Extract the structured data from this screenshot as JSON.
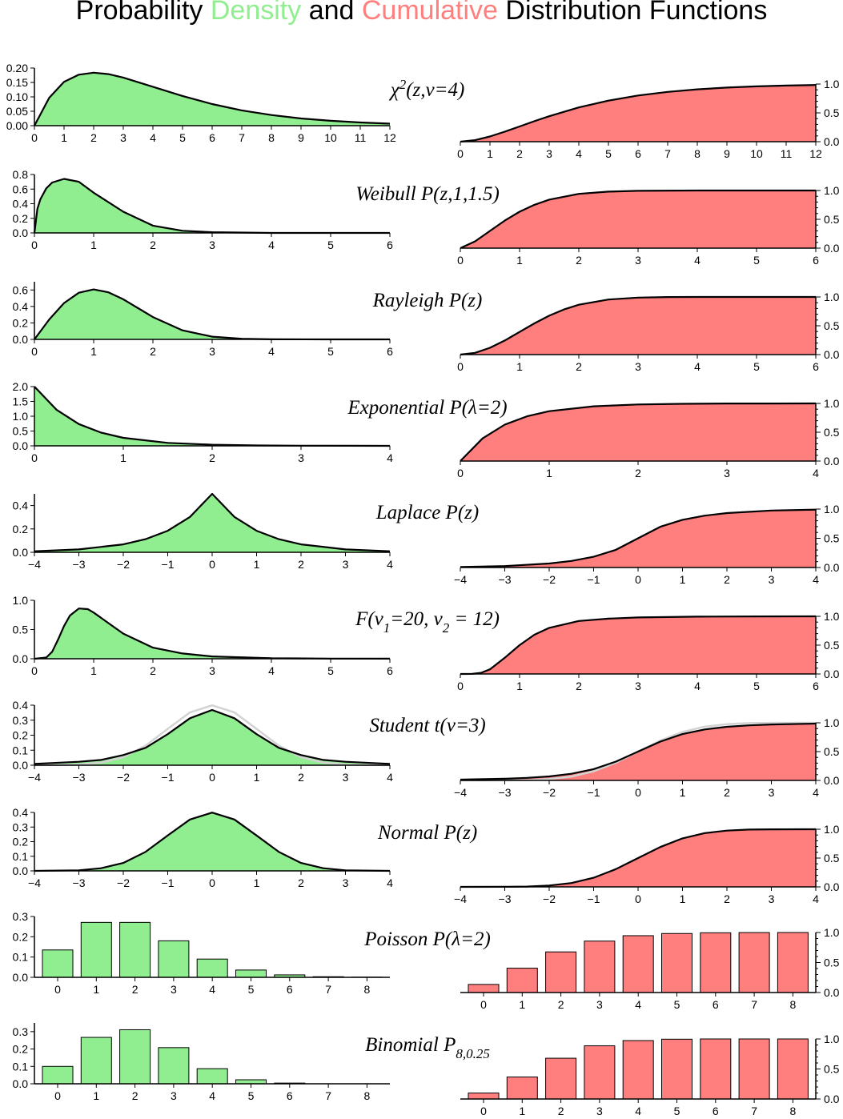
{
  "title": {
    "part1": "Probability ",
    "part2": "Density",
    "part3": " and ",
    "part4": "Cumulative",
    "part5": " Distribution Functions"
  },
  "colors": {
    "density": "#90ee90",
    "cumulative": "#ff7f7f",
    "line": "#000000",
    "reference": "#d3d3d3"
  },
  "chart_data": [
    {
      "type": "area",
      "name": "chi2",
      "label": "χ²(z,ν=4)",
      "pdf": {
        "xlim": [
          0,
          12
        ],
        "ylim": [
          0,
          0.2
        ],
        "xticks": [
          0,
          1,
          2,
          3,
          4,
          5,
          6,
          7,
          8,
          9,
          10,
          11,
          12
        ],
        "yticks": [
          0,
          0.05,
          0.1,
          0.15,
          0.2
        ],
        "ytick_labels": [
          "0.00",
          "0.05",
          "0.10",
          "0.15",
          "0.20"
        ],
        "x": [
          0,
          0.5,
          1,
          1.5,
          2,
          2.5,
          3,
          4,
          5,
          6,
          7,
          8,
          9,
          10,
          11,
          12
        ],
        "y": [
          0,
          0.097,
          0.152,
          0.177,
          0.184,
          0.179,
          0.167,
          0.135,
          0.103,
          0.075,
          0.053,
          0.037,
          0.025,
          0.017,
          0.011,
          0.007
        ]
      },
      "cdf": {
        "xlim": [
          0,
          12
        ],
        "ylim": [
          0,
          1
        ],
        "xticks": [
          0,
          1,
          2,
          3,
          4,
          5,
          6,
          7,
          8,
          9,
          10,
          11,
          12
        ],
        "yticks": [
          0,
          0.5,
          1
        ],
        "ytick_labels": [
          "0.0",
          "0.5",
          "1.0"
        ],
        "x": [
          0,
          0.5,
          1,
          1.5,
          2,
          2.5,
          3,
          4,
          5,
          6,
          7,
          8,
          9,
          10,
          11,
          12
        ],
        "y": [
          0,
          0.026,
          0.09,
          0.173,
          0.264,
          0.355,
          0.442,
          0.594,
          0.713,
          0.801,
          0.864,
          0.908,
          0.939,
          0.96,
          0.973,
          0.983
        ]
      }
    },
    {
      "type": "area",
      "name": "weibull",
      "label": "Weibull P(z,1,1.5)",
      "pdf": {
        "xlim": [
          0,
          6
        ],
        "ylim": [
          0,
          0.8
        ],
        "xticks": [
          0,
          1,
          2,
          3,
          4,
          5,
          6
        ],
        "yticks": [
          0,
          0.2,
          0.4,
          0.6,
          0.8
        ],
        "ytick_labels": [
          "0.0",
          "0.2",
          "0.4",
          "0.6",
          "0.8"
        ],
        "x": [
          0,
          0.05,
          0.1,
          0.2,
          0.3,
          0.5,
          0.75,
          1,
          1.5,
          2,
          2.5,
          3,
          4,
          5,
          6
        ],
        "y": [
          0,
          0.33,
          0.46,
          0.61,
          0.69,
          0.74,
          0.7,
          0.55,
          0.29,
          0.1,
          0.03,
          0.01,
          0,
          0,
          0
        ]
      },
      "cdf": {
        "xlim": [
          0,
          6
        ],
        "ylim": [
          0,
          1
        ],
        "xticks": [
          0,
          1,
          2,
          3,
          4,
          5,
          6
        ],
        "yticks": [
          0,
          0.5,
          1
        ],
        "ytick_labels": [
          "0.0",
          "0.5",
          "1.0"
        ],
        "x": [
          0,
          0.25,
          0.5,
          0.75,
          1,
          1.25,
          1.5,
          2,
          2.5,
          3,
          4,
          5,
          6
        ],
        "y": [
          0,
          0.118,
          0.298,
          0.478,
          0.632,
          0.752,
          0.841,
          0.941,
          0.981,
          0.994,
          1,
          1,
          1
        ]
      }
    },
    {
      "type": "area",
      "name": "rayleigh",
      "label": "Rayleigh P(z)",
      "pdf": {
        "xlim": [
          0,
          6
        ],
        "ylim": [
          0,
          0.7
        ],
        "xticks": [
          0,
          1,
          2,
          3,
          4,
          5,
          6
        ],
        "yticks": [
          0,
          0.2,
          0.4,
          0.6
        ],
        "ytick_labels": [
          "0.0",
          "0.2",
          "0.4",
          "0.6"
        ],
        "x": [
          0,
          0.25,
          0.5,
          0.75,
          1,
          1.25,
          1.5,
          1.75,
          2,
          2.5,
          3,
          3.5,
          4,
          5,
          6
        ],
        "y": [
          0,
          0.242,
          0.441,
          0.567,
          0.607,
          0.572,
          0.487,
          0.379,
          0.271,
          0.11,
          0.033,
          0.008,
          0.001,
          0,
          0
        ]
      },
      "cdf": {
        "xlim": [
          0,
          6
        ],
        "ylim": [
          0,
          1
        ],
        "xticks": [
          0,
          1,
          2,
          3,
          4,
          5,
          6
        ],
        "yticks": [
          0,
          0.5,
          1
        ],
        "ytick_labels": [
          "0.0",
          "0.5",
          "1.0"
        ],
        "x": [
          0,
          0.25,
          0.5,
          0.75,
          1,
          1.25,
          1.5,
          1.75,
          2,
          2.5,
          3,
          3.5,
          4,
          5,
          6
        ],
        "y": [
          0,
          0.031,
          0.118,
          0.245,
          0.393,
          0.542,
          0.675,
          0.784,
          0.865,
          0.956,
          0.989,
          0.998,
          1,
          1,
          1
        ]
      }
    },
    {
      "type": "area",
      "name": "exponential",
      "label": "Exponential P(λ=2)",
      "pdf": {
        "xlim": [
          0,
          4
        ],
        "ylim": [
          0,
          2
        ],
        "xticks": [
          0,
          1,
          2,
          3,
          4
        ],
        "yticks": [
          0,
          0.5,
          1,
          1.5,
          2
        ],
        "ytick_labels": [
          "0.0",
          "0.5",
          "1.0",
          "1.5",
          "2.0"
        ],
        "x": [
          0,
          0.25,
          0.5,
          0.75,
          1,
          1.5,
          2,
          2.5,
          3,
          3.5,
          4
        ],
        "y": [
          2,
          1.213,
          0.736,
          0.446,
          0.271,
          0.1,
          0.037,
          0.013,
          0.005,
          0.002,
          0.001
        ]
      },
      "cdf": {
        "xlim": [
          0,
          4
        ],
        "ylim": [
          0,
          1
        ],
        "xticks": [
          0,
          1,
          2,
          3,
          4
        ],
        "yticks": [
          0,
          0.5,
          1
        ],
        "ytick_labels": [
          "0.0",
          "0.5",
          "1.0"
        ],
        "x": [
          0,
          0.25,
          0.5,
          0.75,
          1,
          1.5,
          2,
          2.5,
          3,
          3.5,
          4
        ],
        "y": [
          0,
          0.393,
          0.632,
          0.777,
          0.865,
          0.95,
          0.982,
          0.993,
          0.998,
          0.999,
          1
        ]
      }
    },
    {
      "type": "area",
      "name": "laplace",
      "label": "Laplace P(z)",
      "pdf": {
        "xlim": [
          -4,
          4
        ],
        "ylim": [
          0,
          0.5
        ],
        "xticks": [
          -4,
          -3,
          -2,
          -1,
          0,
          1,
          2,
          3,
          4
        ],
        "yticks": [
          0,
          0.2,
          0.4
        ],
        "ytick_labels": [
          "0.0",
          "0.2",
          "0.4"
        ],
        "x": [
          -4,
          -3,
          -2,
          -1.5,
          -1,
          -0.5,
          0,
          0.5,
          1,
          1.5,
          2,
          3,
          4
        ],
        "y": [
          0.009,
          0.025,
          0.068,
          0.112,
          0.184,
          0.303,
          0.5,
          0.303,
          0.184,
          0.112,
          0.068,
          0.025,
          0.009
        ]
      },
      "cdf": {
        "xlim": [
          -4,
          4
        ],
        "ylim": [
          0,
          1
        ],
        "xticks": [
          -4,
          -3,
          -2,
          -1,
          0,
          1,
          2,
          3,
          4
        ],
        "yticks": [
          0,
          0.5,
          1
        ],
        "ytick_labels": [
          "0.0",
          "0.5",
          "1.0"
        ],
        "x": [
          -4,
          -3,
          -2,
          -1.5,
          -1,
          -0.5,
          0,
          0.5,
          1,
          1.5,
          2,
          3,
          4
        ],
        "y": [
          0.009,
          0.025,
          0.068,
          0.112,
          0.184,
          0.303,
          0.5,
          0.697,
          0.816,
          0.888,
          0.932,
          0.975,
          0.991
        ]
      }
    },
    {
      "type": "area",
      "name": "f-distribution",
      "label": "F(ν₁=20, ν₂ = 12)",
      "pdf": {
        "xlim": [
          0,
          6
        ],
        "ylim": [
          0,
          1
        ],
        "xticks": [
          0,
          1,
          2,
          3,
          4,
          5,
          6
        ],
        "yticks": [
          0,
          0.5,
          1
        ],
        "ytick_labels": [
          "0.0",
          "0.5",
          "1.0"
        ],
        "x": [
          0,
          0.2,
          0.3,
          0.4,
          0.5,
          0.6,
          0.75,
          0.9,
          1,
          1.25,
          1.5,
          2,
          2.5,
          3,
          4,
          5,
          6
        ],
        "y": [
          0,
          0.02,
          0.12,
          0.33,
          0.56,
          0.74,
          0.86,
          0.85,
          0.79,
          0.61,
          0.43,
          0.19,
          0.09,
          0.04,
          0.01,
          0.003,
          0.001
        ]
      },
      "cdf": {
        "xlim": [
          0,
          6
        ],
        "ylim": [
          0,
          1
        ],
        "xticks": [
          0,
          1,
          2,
          3,
          4,
          5,
          6
        ],
        "yticks": [
          0,
          0.5,
          1
        ],
        "ytick_labels": [
          "0.0",
          "0.5",
          "1.0"
        ],
        "x": [
          0,
          0.2,
          0.35,
          0.5,
          0.75,
          1,
          1.25,
          1.5,
          2,
          2.5,
          3,
          4,
          5,
          6
        ],
        "y": [
          0,
          0.001,
          0.02,
          0.08,
          0.28,
          0.5,
          0.68,
          0.8,
          0.92,
          0.96,
          0.98,
          0.995,
          0.999,
          1
        ]
      }
    },
    {
      "type": "area",
      "name": "student-t",
      "label": "Student t(ν=3)",
      "pdf": {
        "xlim": [
          -4,
          4
        ],
        "ylim": [
          0,
          0.4
        ],
        "xticks": [
          -4,
          -3,
          -2,
          -1,
          0,
          1,
          2,
          3,
          4
        ],
        "yticks": [
          0,
          0.1,
          0.2,
          0.3,
          0.4
        ],
        "ytick_labels": [
          "0.0",
          "0.1",
          "0.2",
          "0.3",
          "0.4"
        ],
        "x": [
          -4,
          -3,
          -2.5,
          -2,
          -1.5,
          -1,
          -0.5,
          0,
          0.5,
          1,
          1.5,
          2,
          2.5,
          3,
          4
        ],
        "y": [
          0.009,
          0.023,
          0.035,
          0.068,
          0.116,
          0.207,
          0.313,
          0.368,
          0.313,
          0.207,
          0.116,
          0.068,
          0.035,
          0.023,
          0.009
        ],
        "reference_y": [
          0.0001,
          0.004,
          0.018,
          0.054,
          0.13,
          0.242,
          0.352,
          0.399,
          0.352,
          0.242,
          0.13,
          0.054,
          0.018,
          0.004,
          0.0001
        ]
      },
      "cdf": {
        "xlim": [
          -4,
          4
        ],
        "ylim": [
          0,
          1
        ],
        "xticks": [
          -4,
          -3,
          -2,
          -1,
          0,
          1,
          2,
          3,
          4
        ],
        "yticks": [
          0,
          0.5,
          1
        ],
        "ytick_labels": [
          "0.0",
          "0.5",
          "1.0"
        ],
        "x": [
          -4,
          -3,
          -2.5,
          -2,
          -1.5,
          -1,
          -0.5,
          0,
          0.5,
          1,
          1.5,
          2,
          2.5,
          3,
          4
        ],
        "y": [
          0.014,
          0.029,
          0.044,
          0.07,
          0.115,
          0.196,
          0.326,
          0.5,
          0.674,
          0.804,
          0.885,
          0.93,
          0.956,
          0.971,
          0.986
        ],
        "reference_y": [
          0,
          0.001,
          0.006,
          0.023,
          0.067,
          0.159,
          0.309,
          0.5,
          0.691,
          0.841,
          0.933,
          0.977,
          0.994,
          0.999,
          1
        ]
      }
    },
    {
      "type": "area",
      "name": "normal",
      "label": "Normal P(z)",
      "pdf": {
        "xlim": [
          -4,
          4
        ],
        "ylim": [
          0,
          0.4
        ],
        "xticks": [
          -4,
          -3,
          -2,
          -1,
          0,
          1,
          2,
          3,
          4
        ],
        "yticks": [
          0,
          0.1,
          0.2,
          0.3,
          0.4
        ],
        "ytick_labels": [
          "0.0",
          "0.1",
          "0.2",
          "0.3",
          "0.4"
        ],
        "x": [
          -4,
          -3,
          -2.5,
          -2,
          -1.5,
          -1,
          -0.5,
          0,
          0.5,
          1,
          1.5,
          2,
          2.5,
          3,
          4
        ],
        "y": [
          0.0001,
          0.004,
          0.018,
          0.054,
          0.13,
          0.242,
          0.352,
          0.399,
          0.352,
          0.242,
          0.13,
          0.054,
          0.018,
          0.004,
          0.0001
        ]
      },
      "cdf": {
        "xlim": [
          -4,
          4
        ],
        "ylim": [
          0,
          1
        ],
        "xticks": [
          -4,
          -3,
          -2,
          -1,
          0,
          1,
          2,
          3,
          4
        ],
        "yticks": [
          0,
          0.5,
          1
        ],
        "ytick_labels": [
          "0.0",
          "0.5",
          "1.0"
        ],
        "x": [
          -4,
          -3,
          -2.5,
          -2,
          -1.5,
          -1,
          -0.5,
          0,
          0.5,
          1,
          1.5,
          2,
          2.5,
          3,
          4
        ],
        "y": [
          0,
          0.001,
          0.006,
          0.023,
          0.067,
          0.159,
          0.309,
          0.5,
          0.691,
          0.841,
          0.933,
          0.977,
          0.994,
          0.999,
          1
        ]
      }
    },
    {
      "type": "bar",
      "name": "poisson",
      "label": "Poisson P(λ=2)",
      "pdf": {
        "ylim": [
          0,
          0.3
        ],
        "yticks": [
          0,
          0.1,
          0.2,
          0.3
        ],
        "ytick_labels": [
          "0.0",
          "0.1",
          "0.2",
          "0.3"
        ],
        "categories": [
          "0",
          "1",
          "2",
          "3",
          "4",
          "5",
          "6",
          "7",
          "8"
        ],
        "values": [
          0.135,
          0.271,
          0.271,
          0.18,
          0.09,
          0.036,
          0.012,
          0.003,
          0.001
        ]
      },
      "cdf": {
        "ylim": [
          0,
          1
        ],
        "yticks": [
          0,
          0.5,
          1
        ],
        "ytick_labels": [
          "0.0",
          "0.5",
          "1.0"
        ],
        "categories": [
          "0",
          "1",
          "2",
          "3",
          "4",
          "5",
          "6",
          "7",
          "8"
        ],
        "values": [
          0.135,
          0.406,
          0.677,
          0.857,
          0.947,
          0.983,
          0.995,
          0.999,
          1
        ]
      }
    },
    {
      "type": "bar",
      "name": "binomial",
      "label": "Binomial P8,0.25",
      "pdf": {
        "ylim": [
          0,
          0.35
        ],
        "yticks": [
          0,
          0.1,
          0.2,
          0.3
        ],
        "ytick_labels": [
          "0.0",
          "0.1",
          "0.2",
          "0.3"
        ],
        "categories": [
          "0",
          "1",
          "2",
          "3",
          "4",
          "5",
          "6",
          "7",
          "8"
        ],
        "values": [
          0.1,
          0.267,
          0.311,
          0.208,
          0.087,
          0.023,
          0.004,
          0,
          0
        ]
      },
      "cdf": {
        "ylim": [
          0,
          1
        ],
        "yticks": [
          0,
          0.5,
          1
        ],
        "ytick_labels": [
          "0.0",
          "0.5",
          "1.0"
        ],
        "categories": [
          "0",
          "1",
          "2",
          "3",
          "4",
          "5",
          "6",
          "7",
          "8"
        ],
        "values": [
          0.1,
          0.367,
          0.679,
          0.886,
          0.973,
          0.996,
          1,
          1,
          1
        ]
      }
    }
  ]
}
